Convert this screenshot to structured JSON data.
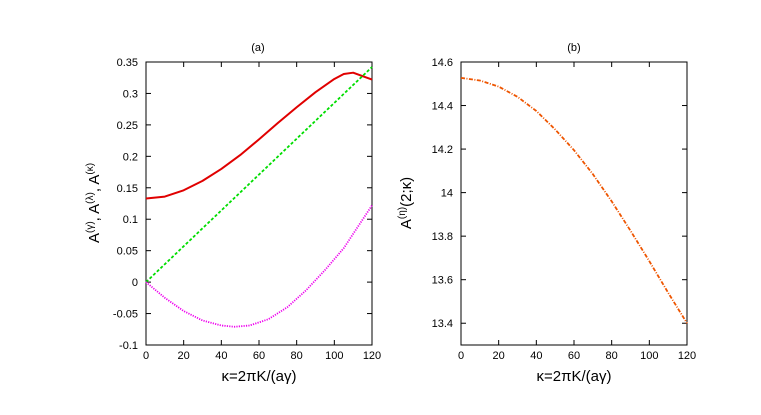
{
  "chart_data": [
    {
      "type": "line",
      "title": "(a)",
      "xlabel": "κ=2πK/(aγ)",
      "ylabel": "A^(γ), A^(λ), A^(κ)",
      "ylabel_parts": [
        "A",
        "(γ)",
        ", A",
        "(λ)",
        ", A",
        "(κ)"
      ],
      "xlim": [
        0,
        120
      ],
      "ylim": [
        -0.1,
        0.35
      ],
      "xticks": [
        0,
        20,
        40,
        60,
        80,
        100,
        120
      ],
      "xtick_labels": [
        "0",
        "20",
        "40",
        "60",
        "80",
        "100",
        "120"
      ],
      "yticks": [
        -0.1,
        -0.05,
        0,
        0.05,
        0.1,
        0.15,
        0.2,
        0.25,
        0.3,
        0.35
      ],
      "ytick_labels": [
        "-0.1",
        "-0.05",
        "0",
        "0.05",
        "0.1",
        "0.15",
        "0.2",
        "0.25",
        "0.3",
        "0.35"
      ],
      "grid": false,
      "series": [
        {
          "color": "#e00000",
          "style": "solid",
          "x": [
            0,
            10,
            20,
            30,
            40,
            50,
            60,
            70,
            80,
            90,
            100,
            105,
            110,
            120
          ],
          "y": [
            0.133,
            0.136,
            0.146,
            0.161,
            0.18,
            0.202,
            0.227,
            0.253,
            0.278,
            0.302,
            0.323,
            0.331,
            0.333,
            0.322
          ]
        },
        {
          "color": "#00dd00",
          "style": "dashed",
          "x": [
            0,
            120
          ],
          "y": [
            0.0,
            0.342
          ]
        },
        {
          "color": "#ee00ee",
          "style": "dotted",
          "x": [
            0,
            10,
            20,
            30,
            40,
            47,
            55,
            65,
            75,
            85,
            95,
            105,
            120
          ],
          "y": [
            0.0,
            -0.025,
            -0.046,
            -0.061,
            -0.069,
            -0.071,
            -0.069,
            -0.059,
            -0.04,
            -0.013,
            0.019,
            0.054,
            0.122
          ]
        }
      ]
    },
    {
      "type": "line",
      "title": "(b)",
      "xlabel": "κ=2πK/(aγ)",
      "ylabel": "A^(η)(2;κ)",
      "ylabel_parts": [
        "A",
        "(η)",
        "(2;κ)"
      ],
      "xlim": [
        0,
        120
      ],
      "ylim": [
        13.3,
        14.6
      ],
      "xticks": [
        0,
        20,
        40,
        60,
        80,
        100,
        120
      ],
      "xtick_labels": [
        "0",
        "20",
        "40",
        "60",
        "80",
        "100",
        "120"
      ],
      "yticks": [
        13.4,
        13.6,
        13.8,
        14.0,
        14.2,
        14.4,
        14.6
      ],
      "ytick_labels": [
        "13.4",
        "13.6",
        "13.8",
        "14",
        "14.2",
        "14.4",
        "14.6"
      ],
      "grid": false,
      "series": [
        {
          "color": "#ee5500",
          "style": "dashdot",
          "x": [
            0,
            10,
            20,
            30,
            40,
            50,
            60,
            70,
            80,
            90,
            100,
            110,
            120
          ],
          "y": [
            14.527,
            14.515,
            14.487,
            14.44,
            14.375,
            14.29,
            14.195,
            14.085,
            13.96,
            13.825,
            13.685,
            13.54,
            13.4
          ]
        }
      ]
    }
  ]
}
